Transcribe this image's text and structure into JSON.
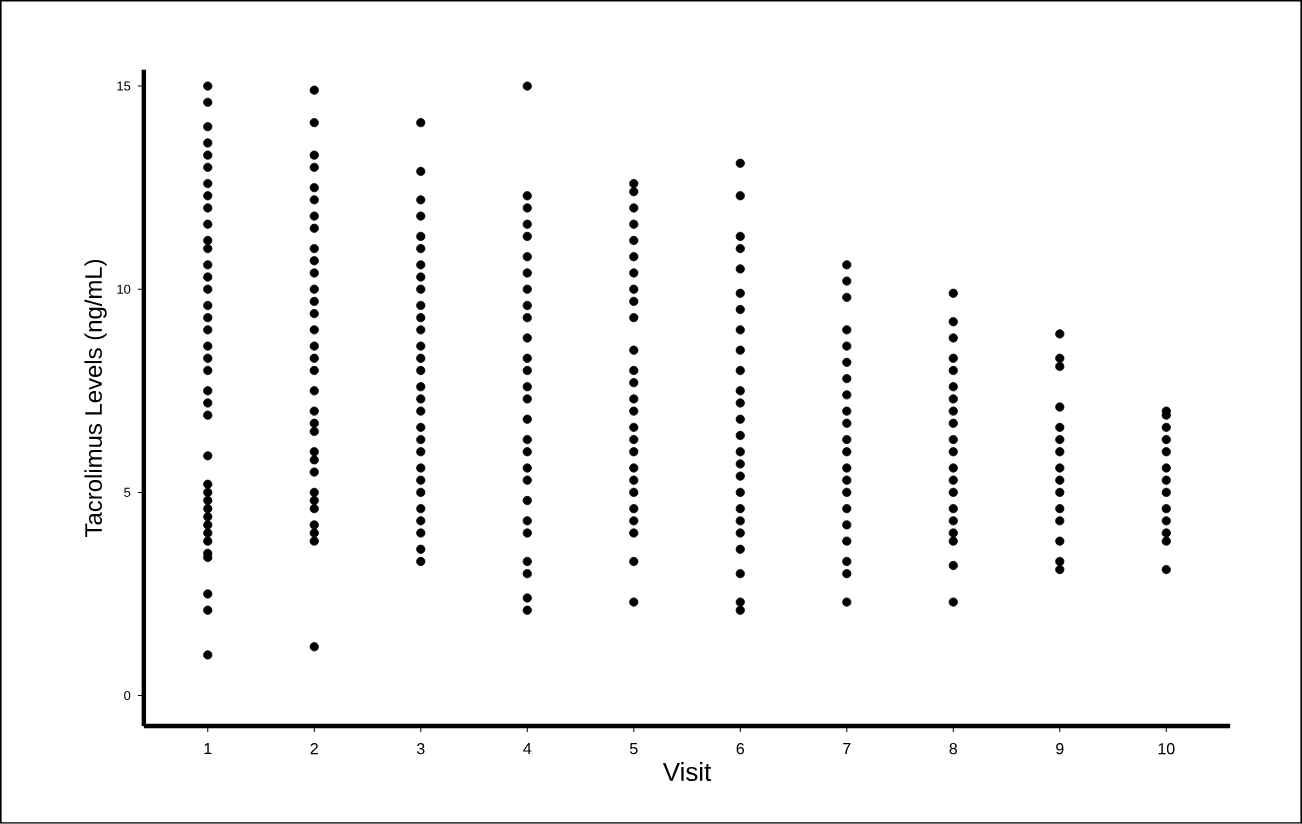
{
  "chart_data": {
    "type": "scatter",
    "xlabel": "Visit",
    "ylabel": "Tacrolimus Levels (ng/mL)",
    "xlim": [
      0.4,
      10.6
    ],
    "xticks": [
      1,
      2,
      3,
      4,
      5,
      6,
      7,
      8,
      9,
      10
    ],
    "ylim": [
      -0.75,
      15.4
    ],
    "yticks": [
      0,
      5,
      10,
      15
    ],
    "grid": false,
    "marker": "circle",
    "series": [
      {
        "color": "#000000",
        "x": [
          1,
          1,
          1,
          1,
          1,
          1,
          1,
          1,
          1,
          1,
          1,
          1,
          1,
          1,
          1,
          1,
          1,
          1,
          1,
          1,
          1,
          1,
          1,
          1,
          1,
          1,
          1,
          1,
          1,
          1,
          1,
          1,
          1,
          1,
          1,
          1,
          1,
          1,
          2,
          2,
          2,
          2,
          2,
          2,
          2,
          2,
          2,
          2,
          2,
          2,
          2,
          2,
          2,
          2,
          2,
          2,
          2,
          2,
          2,
          2,
          2,
          2,
          2,
          2,
          2,
          2,
          2,
          2,
          2,
          2,
          3,
          3,
          3,
          3,
          3,
          3,
          3,
          3,
          3,
          3,
          3,
          3,
          3,
          3,
          3,
          3,
          3,
          3,
          3,
          3,
          3,
          3,
          3,
          3,
          3,
          3,
          3,
          3,
          3,
          4,
          4,
          4,
          4,
          4,
          4,
          4,
          4,
          4,
          4,
          4,
          4,
          4,
          4,
          4,
          4,
          4,
          4,
          4,
          4,
          4,
          4,
          4,
          4,
          4,
          4,
          4,
          5,
          5,
          5,
          5,
          5,
          5,
          5,
          5,
          5,
          5,
          5,
          5,
          5,
          5,
          5,
          5,
          5,
          5,
          5,
          5,
          5,
          5,
          5,
          5,
          5,
          5,
          6,
          6,
          6,
          6,
          6,
          6,
          6,
          6,
          6,
          6,
          6,
          6,
          6,
          6,
          6,
          6,
          6,
          6,
          6,
          6,
          6,
          6,
          6,
          6,
          6,
          7,
          7,
          7,
          7,
          7,
          7,
          7,
          7,
          7,
          7,
          7,
          7,
          7,
          7,
          7,
          7,
          7,
          7,
          7,
          7,
          7,
          8,
          8,
          8,
          8,
          8,
          8,
          8,
          8,
          8,
          8,
          8,
          8,
          8,
          8,
          8,
          8,
          8,
          8,
          8,
          8,
          9,
          9,
          9,
          9,
          9,
          9,
          9,
          9,
          9,
          9,
          9,
          9,
          9,
          9,
          9,
          10,
          10,
          10,
          10,
          10,
          10,
          10,
          10,
          10,
          10,
          10,
          10,
          10
        ],
        "values": [
          1.0,
          2.1,
          2.5,
          3.4,
          3.5,
          3.8,
          4.0,
          4.2,
          4.4,
          4.6,
          4.8,
          5.0,
          5.2,
          5.9,
          6.9,
          7.2,
          7.5,
          8.0,
          8.3,
          8.6,
          9.0,
          9.3,
          9.6,
          10.0,
          10.3,
          10.6,
          11.0,
          11.2,
          11.6,
          12.0,
          12.3,
          12.6,
          13.0,
          13.3,
          13.6,
          14.0,
          14.6,
          15.0,
          1.2,
          3.8,
          4.0,
          4.2,
          4.6,
          4.8,
          5.0,
          5.5,
          5.8,
          6.0,
          6.5,
          6.7,
          7.0,
          7.5,
          8.0,
          8.3,
          8.6,
          9.0,
          9.4,
          9.7,
          10.0,
          10.4,
          10.7,
          11.0,
          11.5,
          11.8,
          12.2,
          12.5,
          13.0,
          13.3,
          14.1,
          14.9,
          3.3,
          3.6,
          4.0,
          4.3,
          4.6,
          5.0,
          5.3,
          5.6,
          6.0,
          6.3,
          6.6,
          7.0,
          7.3,
          7.6,
          8.0,
          8.3,
          8.6,
          9.0,
          9.3,
          9.6,
          10.0,
          10.3,
          10.6,
          11.0,
          11.3,
          11.8,
          12.2,
          12.9,
          14.1,
          2.1,
          2.4,
          3.0,
          3.3,
          4.0,
          4.3,
          4.8,
          5.3,
          5.6,
          6.0,
          6.3,
          6.8,
          7.3,
          7.6,
          8.0,
          8.3,
          8.8,
          9.3,
          9.6,
          10.0,
          10.4,
          10.8,
          11.3,
          11.6,
          12.0,
          12.3,
          15.0,
          2.3,
          3.3,
          4.0,
          4.3,
          4.6,
          5.0,
          5.3,
          5.6,
          6.0,
          6.3,
          6.6,
          7.0,
          7.3,
          7.7,
          8.0,
          8.5,
          9.3,
          9.7,
          10.0,
          10.4,
          10.8,
          11.2,
          11.6,
          12.0,
          12.4,
          12.6,
          2.1,
          2.3,
          3.0,
          3.6,
          4.0,
          4.3,
          4.6,
          5.0,
          5.4,
          5.7,
          6.0,
          6.4,
          6.8,
          7.2,
          7.5,
          8.0,
          8.5,
          9.0,
          9.5,
          9.9,
          10.5,
          11.0,
          11.3,
          12.3,
          13.1,
          2.3,
          3.0,
          3.3,
          3.8,
          4.2,
          4.6,
          5.0,
          5.3,
          5.6,
          6.0,
          6.3,
          6.7,
          7.0,
          7.4,
          7.8,
          8.2,
          8.6,
          9.0,
          9.8,
          10.2,
          10.6,
          2.3,
          3.2,
          3.8,
          4.0,
          4.3,
          4.6,
          5.0,
          5.3,
          5.6,
          6.0,
          6.3,
          6.7,
          7.0,
          7.3,
          7.6,
          8.0,
          8.3,
          8.8,
          9.2,
          9.9,
          3.1,
          3.3,
          3.8,
          4.3,
          4.6,
          5.0,
          5.3,
          5.6,
          6.0,
          6.3,
          6.6,
          7.1,
          8.1,
          8.3,
          8.9,
          3.1,
          3.8,
          4.0,
          4.3,
          4.6,
          5.0,
          5.3,
          5.6,
          6.0,
          6.3,
          6.6,
          6.9,
          7.0
        ]
      }
    ]
  }
}
